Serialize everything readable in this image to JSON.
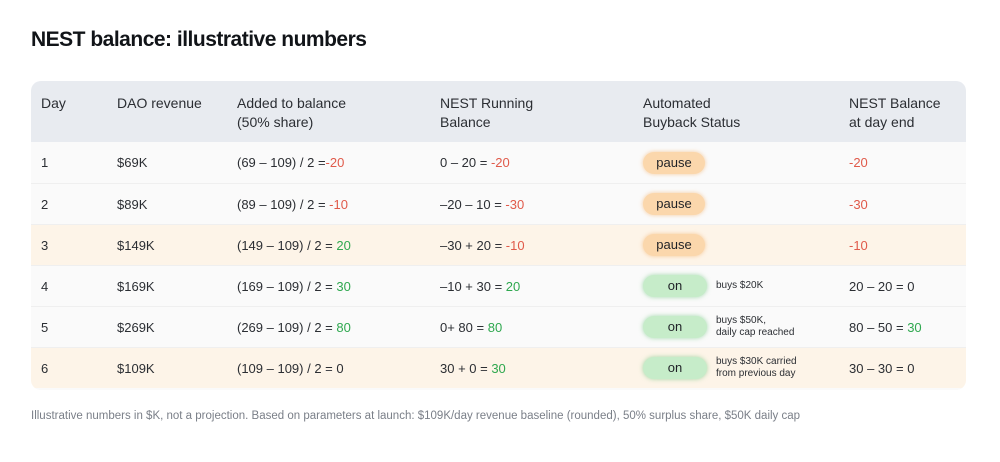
{
  "title": "NEST balance: illustrative numbers",
  "headers": {
    "day": "Day",
    "revenue": "DAO revenue",
    "added_1": "Added to balance",
    "added_2": "(50% share)",
    "running_1": "NEST Running",
    "running_2": "Balance",
    "status_1": "Automated",
    "status_2": "Buyback Status",
    "end_1": "NEST Balance",
    "end_2": "at day end"
  },
  "rows": [
    {
      "day": "1",
      "revenue": "$69K",
      "added_expr": "(69 – 109) / 2 =",
      "added_val": "-20",
      "added_tone": "neg",
      "run_expr": "0 – 20 = ",
      "run_val": "-20",
      "run_tone": "neg",
      "status": "pause",
      "note_1": "",
      "note_2": "",
      "end_expr": "",
      "end_val": "-20",
      "end_tone": "neg",
      "highlight": false
    },
    {
      "day": "2",
      "revenue": "$89K",
      "added_expr": "(89 – 109) / 2 = ",
      "added_val": "-10",
      "added_tone": "neg",
      "run_expr": "–20 – 10 = ",
      "run_val": "-30",
      "run_tone": "neg",
      "status": "pause",
      "note_1": "",
      "note_2": "",
      "end_expr": "",
      "end_val": "-30",
      "end_tone": "neg",
      "highlight": false
    },
    {
      "day": "3",
      "revenue": "$149K",
      "added_expr": "(149 – 109) / 2 = ",
      "added_val": "20",
      "added_tone": "pos",
      "run_expr": "–30 + 20 = ",
      "run_val": "-10",
      "run_tone": "neg",
      "status": "pause",
      "note_1": "",
      "note_2": "",
      "end_expr": "",
      "end_val": "-10",
      "end_tone": "neg",
      "highlight": true
    },
    {
      "day": "4",
      "revenue": "$169K",
      "added_expr": "(169 – 109) / 2 = ",
      "added_val": "30",
      "added_tone": "pos",
      "run_expr": "–10 + 30 = ",
      "run_val": "20",
      "run_tone": "pos",
      "status": "on",
      "note_1": "buys $20K",
      "note_2": "",
      "end_expr": "20 – 20 = 0",
      "end_val": "",
      "end_tone": "",
      "highlight": false
    },
    {
      "day": "5",
      "revenue": "$269K",
      "added_expr": "(269 – 109) / 2 = ",
      "added_val": "80",
      "added_tone": "pos",
      "run_expr": "0+ 80 = ",
      "run_val": "80",
      "run_tone": "pos",
      "status": "on",
      "note_1": "buys $50K,",
      "note_2": "daily cap reached",
      "end_expr": "80 – 50 = ",
      "end_val": "30",
      "end_tone": "pos",
      "highlight": false
    },
    {
      "day": "6",
      "revenue": "$109K",
      "added_expr": "(109 – 109) / 2 = 0",
      "added_val": "",
      "added_tone": "",
      "run_expr": "30 + 0 = ",
      "run_val": "30",
      "run_tone": "pos",
      "status": "on",
      "note_1": "buys $30K carried",
      "note_2": "from previous day",
      "end_expr": "30 – 30 = 0",
      "end_val": "",
      "end_tone": "",
      "highlight": true
    }
  ],
  "footer": "Illustrative numbers in $K, not a projection. Based on parameters at launch: $109K/day revenue baseline (rounded), 50% surplus share, $50K daily cap",
  "colors": {
    "negative": "#e05a4a",
    "positive": "#2fa84f",
    "pause_pill": "#fbd7ac",
    "on_pill": "#c6ecc9",
    "header_bg": "#e8ebf0",
    "highlight_row": "#fdf4e8"
  }
}
